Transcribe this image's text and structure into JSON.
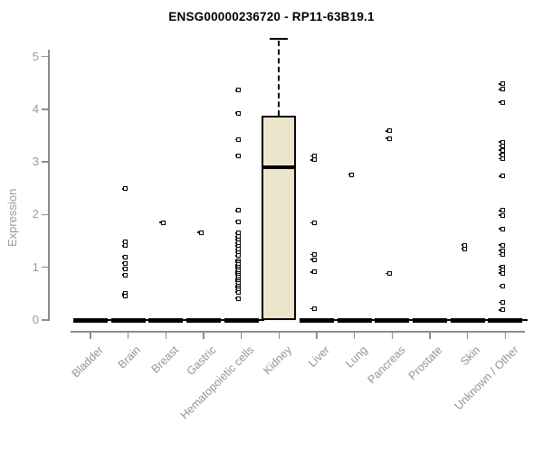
{
  "chart_data": {
    "type": "boxplot",
    "title": "ENSG00000236720 - RP11-63B19.1",
    "ylabel": "Expression",
    "xlabel": "",
    "ylim": [
      0,
      5.5
    ],
    "yticks": [
      0,
      1,
      2,
      3,
      4,
      5
    ],
    "grid": false,
    "legend": null,
    "categories": [
      "Bladder",
      "Brain",
      "Breast",
      "Gastric",
      "Hematopoietic cells",
      "Kidney",
      "Liver",
      "Lung",
      "Pancreas",
      "Prostate",
      "Skin",
      "Unknown / Other"
    ],
    "series": [
      {
        "category": "Bladder",
        "zero_bar": true,
        "points": []
      },
      {
        "category": "Brain",
        "zero_bar": true,
        "points": [
          2.49,
          1.48,
          1.41,
          1.2,
          1.08,
          0.97,
          0.85,
          0.5,
          0.46
        ]
      },
      {
        "category": "Breast",
        "zero_bar": true,
        "points": [
          1.85
        ]
      },
      {
        "category": "Gastric",
        "zero_bar": true,
        "points": [
          1.66
        ]
      },
      {
        "category": "Hematopoietic cells",
        "zero_bar": true,
        "points": [
          4.36,
          3.93,
          3.42,
          3.12,
          2.08,
          1.87,
          1.65,
          1.58,
          1.52,
          1.46,
          1.4,
          1.34,
          1.28,
          1.22,
          1.13,
          1.09,
          1.05,
          1.01,
          0.97,
          0.93,
          0.89,
          0.85,
          0.81,
          0.77,
          0.73,
          0.69,
          0.65,
          0.61,
          0.57,
          0.53,
          0.41
        ]
      },
      {
        "category": "Kidney",
        "zero_bar": false,
        "box": {
          "whisker_low": 0,
          "q1": 0,
          "median": 2.9,
          "q3": 3.88,
          "whisker_high": 5.34
        },
        "points": []
      },
      {
        "category": "Liver",
        "zero_bar": true,
        "points": [
          3.11,
          3.04,
          1.84,
          1.24,
          1.15,
          0.91,
          0.21
        ]
      },
      {
        "category": "Lung",
        "zero_bar": true,
        "points": [
          2.76
        ]
      },
      {
        "category": "Pancreas",
        "zero_bar": true,
        "points": [
          3.59,
          3.45,
          0.88
        ]
      },
      {
        "category": "Prostate",
        "zero_bar": true,
        "points": []
      },
      {
        "category": "Skin",
        "zero_bar": true,
        "points": [
          1.42,
          1.35
        ]
      },
      {
        "category": "Unknown / Other",
        "zero_bar": true,
        "points": [
          4.48,
          4.38,
          4.13,
          3.38,
          3.3,
          3.22,
          3.14,
          3.06,
          2.73,
          2.08,
          1.99,
          1.73,
          1.42,
          1.32,
          1.24,
          1.01,
          0.95,
          0.89,
          0.64,
          0.33,
          0.19
        ]
      }
    ],
    "colors": {
      "background": "#ffffff",
      "box_fill": "#ebe5cb",
      "box_border": "#000000",
      "median": "#000000",
      "point": "#000000",
      "zero_bar": "#000000",
      "axis": "#8a8d90",
      "tick_text": "#97999b",
      "title_text": "#000000"
    }
  }
}
